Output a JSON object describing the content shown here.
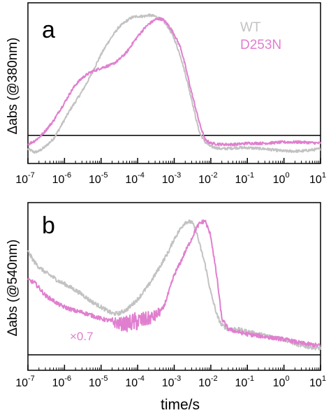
{
  "colors": {
    "wt": "#c2c2c2",
    "d253n": "#e07fcf",
    "axis": "#000000"
  },
  "xlabel": "time/s",
  "chart_data": [
    {
      "type": "line",
      "panel_label": "a",
      "ylabel": "Δabs (@380nm)",
      "x_scale": "log",
      "xlim": [
        1e-07,
        10
      ],
      "ylim": [
        -0.25,
        1.18
      ],
      "baseline": 0,
      "tick_labels": [
        {
          "base": "10",
          "exp": "-7"
        },
        {
          "base": "10",
          "exp": "-6"
        },
        {
          "base": "10",
          "exp": "-5"
        },
        {
          "base": "10",
          "exp": "-4"
        },
        {
          "base": "10",
          "exp": "-3"
        },
        {
          "base": "10",
          "exp": "-2"
        },
        {
          "base": "10",
          "exp": "-1"
        },
        {
          "base": "10",
          "exp": "0"
        },
        {
          "base": "10",
          "exp": "1"
        }
      ],
      "legend": [
        {
          "name": "WT",
          "color": "#c2c2c2"
        },
        {
          "name": "D253N",
          "color": "#e07fcf"
        }
      ],
      "series": [
        {
          "name": "WT",
          "color": "#c2c2c2",
          "x": [
            1e-07,
            1.5e-07,
            2e-07,
            3e-07,
            5e-07,
            7e-07,
            1e-06,
            1.5e-06,
            2e-06,
            3e-06,
            5e-06,
            7e-06,
            1e-05,
            1.5e-05,
            2e-05,
            3e-05,
            5e-05,
            7e-05,
            0.0001,
            0.00015,
            0.0002,
            0.0003,
            0.0005,
            0.0007,
            0.001,
            0.0015,
            0.002,
            0.003,
            0.004,
            0.005,
            0.007,
            0.01,
            0.02,
            0.05,
            0.1,
            0.3,
            1,
            3,
            10
          ],
          "y": [
            -0.12,
            -0.15,
            -0.14,
            -0.1,
            -0.03,
            0.05,
            0.14,
            0.24,
            0.3,
            0.39,
            0.52,
            0.62,
            0.72,
            0.82,
            0.88,
            0.96,
            1.02,
            1.05,
            1.06,
            1.06,
            1.07,
            1.06,
            1.02,
            0.96,
            0.86,
            0.7,
            0.55,
            0.32,
            0.14,
            0.02,
            -0.06,
            -0.1,
            -0.12,
            -0.11,
            -0.11,
            -0.12,
            -0.14,
            -0.14,
            -0.12
          ],
          "noise": 0.012
        },
        {
          "name": "D253N",
          "color": "#e07fcf",
          "x": [
            1e-07,
            1.5e-07,
            2e-07,
            3e-07,
            5e-07,
            7e-07,
            1e-06,
            1.5e-06,
            2e-06,
            3e-06,
            5e-06,
            1e-05,
            2e-05,
            3e-05,
            5e-05,
            7e-05,
            0.0001,
            0.00015,
            0.0002,
            0.0003,
            0.0004,
            0.0005,
            0.0007,
            0.001,
            0.0015,
            0.002,
            0.003,
            0.005,
            0.007,
            0.01,
            0.02,
            0.05,
            0.1,
            0.3,
            1,
            3,
            10
          ],
          "y": [
            -0.08,
            -0.05,
            -0.02,
            0.04,
            0.13,
            0.21,
            0.29,
            0.39,
            0.45,
            0.51,
            0.56,
            0.6,
            0.63,
            0.67,
            0.74,
            0.81,
            0.88,
            0.95,
            0.99,
            1.03,
            1.04,
            1.03,
            0.98,
            0.9,
            0.78,
            0.62,
            0.38,
            0.1,
            -0.04,
            -0.07,
            -0.08,
            -0.08,
            -0.07,
            -0.07,
            -0.06,
            -0.06,
            -0.07
          ],
          "noise": 0.012
        }
      ]
    },
    {
      "type": "line",
      "panel_label": "b",
      "ylabel": "Δabs (@540nm)",
      "x_scale": "log",
      "xlim": [
        1e-07,
        10
      ],
      "ylim": [
        -0.12,
        1.18
      ],
      "baseline": 0,
      "tick_labels": [
        {
          "base": "10",
          "exp": "-7"
        },
        {
          "base": "10",
          "exp": "-6"
        },
        {
          "base": "10",
          "exp": "-5"
        },
        {
          "base": "10",
          "exp": "-4"
        },
        {
          "base": "10",
          "exp": "-3"
        },
        {
          "base": "10",
          "exp": "-2"
        },
        {
          "base": "10",
          "exp": "-1"
        },
        {
          "base": "10",
          "exp": "0"
        },
        {
          "base": "10",
          "exp": "1"
        }
      ],
      "annotation": {
        "text": "×0.7",
        "color": "#e07fcf",
        "series": "D253N"
      },
      "series": [
        {
          "name": "WT",
          "color": "#c2c2c2",
          "x": [
            1e-07,
            1.5e-07,
            2e-07,
            3e-07,
            5e-07,
            7e-07,
            1e-06,
            2e-06,
            3e-06,
            5e-06,
            1e-05,
            2e-05,
            3e-05,
            5e-05,
            0.0001,
            0.0002,
            0.0004,
            0.0007,
            0.001,
            0.0015,
            0.002,
            0.003,
            0.004,
            0.005,
            0.007,
            0.01,
            0.015,
            0.02,
            0.03,
            0.05,
            0.1,
            0.3,
            1,
            3,
            10
          ],
          "y": [
            0.8,
            0.72,
            0.68,
            0.64,
            0.6,
            0.57,
            0.55,
            0.5,
            0.47,
            0.42,
            0.37,
            0.32,
            0.32,
            0.35,
            0.43,
            0.54,
            0.68,
            0.8,
            0.9,
            0.98,
            1.03,
            1.03,
            0.96,
            0.85,
            0.7,
            0.48,
            0.3,
            0.23,
            0.2,
            0.2,
            0.18,
            0.15,
            0.12,
            0.07,
            0.05
          ],
          "noise": 0.016
        },
        {
          "name": "D253N",
          "color": "#e07fcf",
          "x": [
            1e-07,
            1.5e-07,
            2e-07,
            3e-07,
            5e-07,
            7e-07,
            1e-06,
            2e-06,
            3e-06,
            5e-06,
            1e-05,
            2e-05,
            3e-05,
            5e-05,
            7e-05,
            0.0001,
            0.00015,
            0.0002,
            0.0003,
            0.0005,
            0.0007,
            0.001,
            0.0015,
            0.002,
            0.003,
            0.004,
            0.005,
            0.007,
            0.01,
            0.015,
            0.02,
            0.03,
            0.05,
            0.1,
            0.3,
            1,
            3,
            10
          ],
          "y": [
            0.58,
            0.56,
            0.52,
            0.46,
            0.42,
            0.39,
            0.37,
            0.34,
            0.33,
            0.31,
            0.28,
            0.26,
            0.24,
            0.24,
            0.25,
            0.26,
            0.27,
            0.28,
            0.3,
            0.36,
            0.48,
            0.62,
            0.72,
            0.8,
            0.9,
            0.98,
            1.02,
            1.04,
            0.92,
            0.58,
            0.28,
            0.2,
            0.18,
            0.16,
            0.14,
            0.12,
            0.09,
            0.07
          ],
          "noise": 0.016,
          "noisy_range": [
            2e-05,
            0.0004
          ],
          "noisy_amp": 0.06
        }
      ]
    }
  ]
}
